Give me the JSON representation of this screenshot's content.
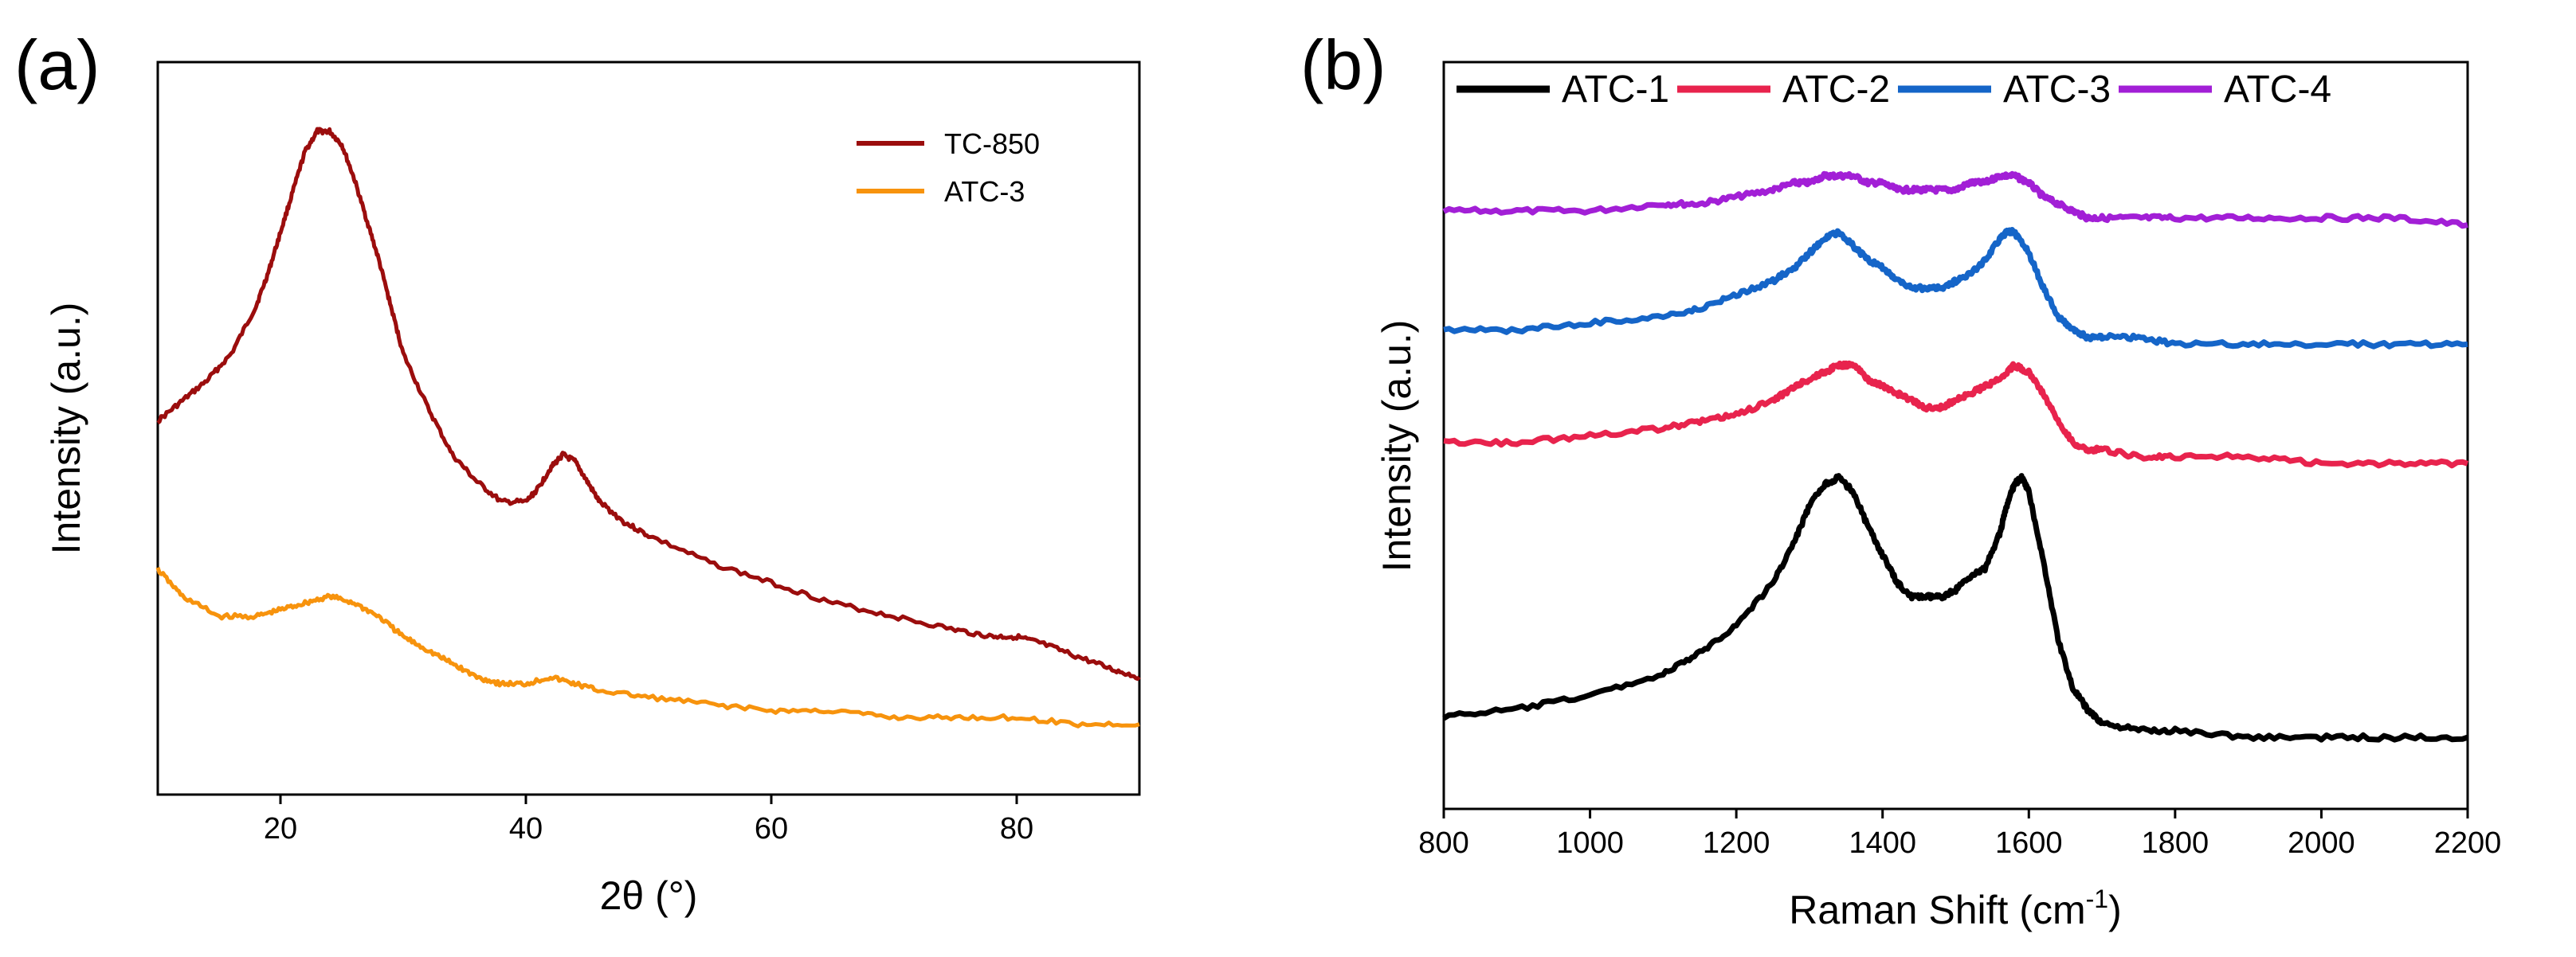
{
  "chart_data": [
    {
      "panel_label": "(a)",
      "type": "line",
      "xlabel": "2θ (°)",
      "ylabel": "Intensity (a.u.)",
      "xlim": [
        10,
        90
      ],
      "ylim": [
        0,
        1
      ],
      "x_ticks": [
        20,
        40,
        60,
        80
      ],
      "y_ticks": [],
      "legend_position": "top-right",
      "series": [
        {
          "name": "TC-850",
          "color": "#9b0d0d",
          "x": [
            10,
            12,
            14,
            16,
            18,
            19,
            20,
            21,
            22,
            23,
            24,
            25,
            26,
            27,
            28,
            29,
            30,
            32,
            34,
            36,
            38,
            40,
            41,
            42,
            43,
            44,
            45,
            46,
            48,
            50,
            55,
            60,
            65,
            70,
            75,
            78,
            80,
            82,
            85,
            88,
            90
          ],
          "y": [
            0.5,
            0.53,
            0.56,
            0.6,
            0.67,
            0.72,
            0.78,
            0.84,
            0.9,
            0.93,
            0.93,
            0.91,
            0.86,
            0.8,
            0.74,
            0.67,
            0.6,
            0.52,
            0.45,
            0.41,
            0.38,
            0.38,
            0.4,
            0.43,
            0.45,
            0.44,
            0.41,
            0.38,
            0.35,
            0.33,
            0.29,
            0.26,
            0.23,
            0.21,
            0.19,
            0.18,
            0.18,
            0.17,
            0.15,
            0.13,
            0.12
          ]
        },
        {
          "name": "ATC-3",
          "color": "#f7930d",
          "x": [
            10,
            12,
            15,
            18,
            20,
            22,
            24,
            26,
            28,
            30,
            32,
            34,
            36,
            38,
            40,
            42,
            44,
            46,
            50,
            55,
            60,
            65,
            70,
            75,
            80,
            85,
            90
          ],
          "y": [
            0.28,
            0.24,
            0.21,
            0.21,
            0.22,
            0.23,
            0.24,
            0.23,
            0.21,
            0.18,
            0.16,
            0.14,
            0.12,
            0.11,
            0.11,
            0.12,
            0.11,
            0.1,
            0.09,
            0.08,
            0.07,
            0.07,
            0.06,
            0.06,
            0.06,
            0.05,
            0.05
          ]
        }
      ]
    },
    {
      "panel_label": "(b)",
      "type": "line",
      "xlabel": "Raman Shift (cm",
      "xlabel_superscript": "-1",
      "xlabel_suffix": ")",
      "ylabel": "Intensity (a.u.)",
      "xlim": [
        800,
        2200
      ],
      "ylim": [
        0,
        1
      ],
      "x_ticks": [
        800,
        1000,
        1200,
        1400,
        1600,
        1800,
        2000,
        2200
      ],
      "y_ticks": [],
      "legend_position": "top",
      "series": [
        {
          "name": "ATC-1",
          "color": "#000000",
          "x": [
            800,
            900,
            1000,
            1100,
            1150,
            1200,
            1250,
            1280,
            1300,
            1320,
            1340,
            1360,
            1380,
            1400,
            1420,
            1440,
            1460,
            1480,
            1500,
            1520,
            1540,
            1560,
            1570,
            1580,
            1590,
            1600,
            1620,
            1640,
            1660,
            1680,
            1700,
            1750,
            1800,
            1900,
            2000,
            2100,
            2200
          ],
          "y": [
            0.1,
            0.11,
            0.13,
            0.16,
            0.19,
            0.23,
            0.29,
            0.35,
            0.4,
            0.43,
            0.44,
            0.42,
            0.37,
            0.33,
            0.29,
            0.27,
            0.27,
            0.27,
            0.28,
            0.3,
            0.31,
            0.36,
            0.4,
            0.43,
            0.44,
            0.42,
            0.32,
            0.21,
            0.14,
            0.11,
            0.09,
            0.08,
            0.08,
            0.07,
            0.07,
            0.07,
            0.07
          ]
        },
        {
          "name": "ATC-2",
          "color": "#e8234d",
          "x": [
            800,
            900,
            1000,
            1100,
            1150,
            1200,
            1250,
            1280,
            1300,
            1320,
            1340,
            1360,
            1380,
            1400,
            1420,
            1440,
            1460,
            1480,
            1500,
            1520,
            1540,
            1560,
            1580,
            1600,
            1620,
            1640,
            1660,
            1680,
            1700,
            1750,
            1800,
            1900,
            2000,
            2100,
            2200
          ],
          "y": [
            0.49,
            0.49,
            0.5,
            0.51,
            0.52,
            0.53,
            0.55,
            0.57,
            0.58,
            0.59,
            0.6,
            0.6,
            0.58,
            0.57,
            0.56,
            0.55,
            0.54,
            0.54,
            0.55,
            0.56,
            0.57,
            0.58,
            0.6,
            0.59,
            0.56,
            0.52,
            0.49,
            0.48,
            0.48,
            0.47,
            0.47,
            0.47,
            0.46,
            0.46,
            0.46
          ]
        },
        {
          "name": "ATC-3",
          "color": "#1565c8",
          "x": [
            800,
            900,
            1000,
            1100,
            1150,
            1200,
            1250,
            1280,
            1300,
            1320,
            1340,
            1360,
            1380,
            1400,
            1420,
            1440,
            1460,
            1480,
            1500,
            1520,
            1540,
            1560,
            1570,
            1580,
            1600,
            1620,
            1640,
            1660,
            1680,
            1700,
            1750,
            1800,
            1900,
            2000,
            2100,
            2200
          ],
          "y": [
            0.65,
            0.65,
            0.66,
            0.67,
            0.68,
            0.7,
            0.72,
            0.74,
            0.76,
            0.78,
            0.79,
            0.77,
            0.75,
            0.74,
            0.72,
            0.71,
            0.71,
            0.71,
            0.72,
            0.73,
            0.75,
            0.78,
            0.79,
            0.79,
            0.76,
            0.71,
            0.67,
            0.65,
            0.64,
            0.64,
            0.64,
            0.63,
            0.63,
            0.63,
            0.63,
            0.63
          ]
        },
        {
          "name": "ATC-4",
          "color": "#a21fd6",
          "x": [
            800,
            900,
            1000,
            1100,
            1150,
            1200,
            1250,
            1280,
            1300,
            1320,
            1340,
            1360,
            1380,
            1400,
            1420,
            1440,
            1460,
            1480,
            1500,
            1520,
            1540,
            1560,
            1580,
            1600,
            1620,
            1640,
            1660,
            1680,
            1700,
            1750,
            1800,
            1900,
            2000,
            2100,
            2200
          ],
          "y": [
            0.82,
            0.82,
            0.82,
            0.83,
            0.83,
            0.84,
            0.85,
            0.86,
            0.86,
            0.87,
            0.87,
            0.87,
            0.86,
            0.86,
            0.85,
            0.85,
            0.85,
            0.85,
            0.85,
            0.86,
            0.86,
            0.87,
            0.87,
            0.86,
            0.84,
            0.83,
            0.82,
            0.81,
            0.81,
            0.81,
            0.81,
            0.81,
            0.81,
            0.81,
            0.8
          ]
        }
      ]
    }
  ]
}
